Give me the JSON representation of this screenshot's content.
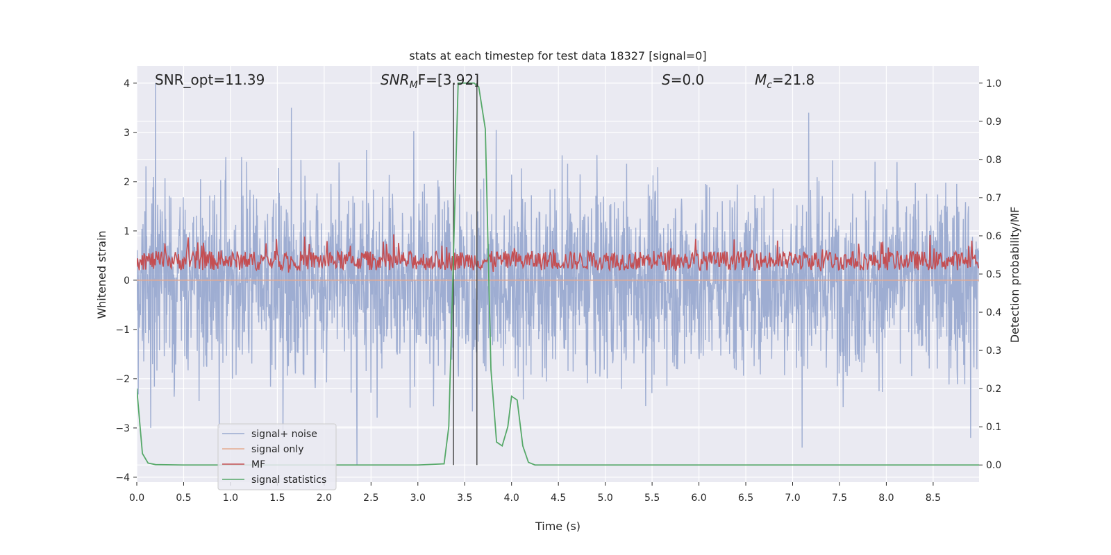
{
  "chart_data": {
    "type": "line",
    "title": "stats at each timestep for test data 18327 [signal=0]",
    "xlabel": "Time (s)",
    "ylabel_left": "Whitened strain",
    "ylabel_right": "Detection probability/MF",
    "xlim": [
      0.0,
      8.99
    ],
    "ylim_left": [
      -4.1,
      4.35
    ],
    "ylim_right": [
      -0.045,
      1.045
    ],
    "x_ticks": [
      "0.0",
      "0.5",
      "1.0",
      "1.5",
      "2.0",
      "2.5",
      "3.0",
      "3.5",
      "4.0",
      "4.5",
      "5.0",
      "5.5",
      "6.0",
      "6.5",
      "7.0",
      "7.5",
      "8.0",
      "8.5"
    ],
    "y_ticks_left": [
      "4",
      "3",
      "2",
      "1",
      "0",
      "−1",
      "−2",
      "−3",
      "−4"
    ],
    "y_ticks_right": [
      "1.0",
      "0.9",
      "0.8",
      "0.7",
      "0.6",
      "0.5",
      "0.4",
      "0.3",
      "0.2",
      "0.1",
      "0.0"
    ],
    "grid": true,
    "legend_position": "lower-left",
    "annotations": {
      "snr_opt": "SNR_opt=11.39",
      "snr_mf_main": "SNR",
      "snr_mf_sub": "M",
      "snr_mf_tail": "F=[3.92]",
      "s_main": "S",
      "s_tail": "=0.0",
      "mc_main": "M",
      "mc_sub": "c",
      "mc_tail": "=21.8"
    },
    "vertical_lines_x": [
      3.38,
      3.63
    ],
    "series": [
      {
        "name": "signal+ noise",
        "color": "#9aaad0",
        "axis": "left",
        "description_range": [
          -3.75,
          4.0
        ],
        "spikes": [
          [
            0.2,
            4.0
          ],
          [
            1.65,
            3.5
          ],
          [
            7.17,
            3.4
          ],
          [
            2.35,
            -3.75
          ],
          [
            7.1,
            -3.4
          ],
          [
            8.9,
            -3.2
          ],
          [
            0.15,
            -3.0
          ],
          [
            0.88,
            -3.0
          ]
        ]
      },
      {
        "name": "signal only",
        "color": "#e5a98f",
        "axis": "left",
        "x": [
          0.0,
          8.99
        ],
        "y": [
          0.0,
          0.0
        ]
      },
      {
        "name": "MF",
        "color": "#c44e52",
        "axis": "right",
        "value_range": [
          0.5,
          0.61
        ]
      },
      {
        "name": "signal statistics",
        "color": "#55a868",
        "axis": "right",
        "x": [
          0.0,
          0.06,
          0.12,
          0.2,
          0.5,
          1.0,
          2.0,
          3.0,
          3.28,
          3.33,
          3.38,
          3.43,
          3.5,
          3.6,
          3.65,
          3.72,
          3.78,
          3.84,
          3.9,
          3.96,
          4.0,
          4.06,
          4.12,
          4.18,
          4.25,
          5.0,
          6.0,
          7.0,
          8.0,
          8.99
        ],
        "y": [
          0.2,
          0.03,
          0.005,
          0.001,
          0.0,
          0.0,
          0.0,
          0.0,
          0.003,
          0.1,
          0.55,
          1.0,
          1.0,
          1.0,
          0.99,
          0.88,
          0.25,
          0.06,
          0.05,
          0.1,
          0.18,
          0.17,
          0.05,
          0.007,
          0.0,
          0.0,
          0.0,
          0.0,
          0.0,
          0.0
        ]
      }
    ]
  }
}
